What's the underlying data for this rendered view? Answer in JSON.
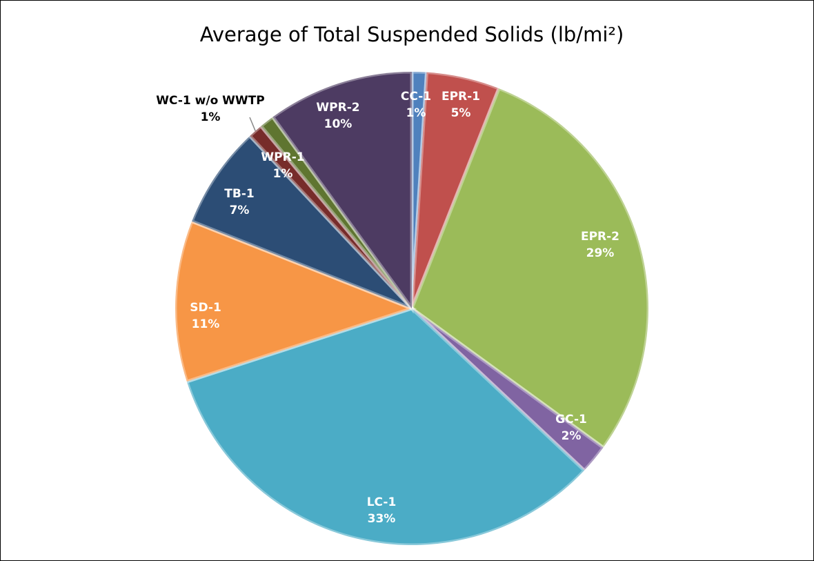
{
  "chart_data": {
    "type": "pie",
    "title": "Average of Total Suspended Solids (lb/mi²)",
    "categories": [
      "CC-1",
      "EPR-1",
      "EPR-2",
      "GC-1",
      "LC-1",
      "SD-1",
      "TB-1",
      "WC-1 w/o WWTP",
      "WPR-1",
      "WPR-2"
    ],
    "values": [
      1,
      5,
      29,
      2,
      33,
      11,
      7,
      1,
      1,
      10
    ],
    "value_labels": [
      "1%",
      "5%",
      "29%",
      "2%",
      "33%",
      "11%",
      "7%",
      "1%",
      "1%",
      "10%"
    ],
    "colors": [
      "#4f81bd",
      "#c0504d",
      "#9bbb59",
      "#8064a2",
      "#4bacc6",
      "#f79646",
      "#2c4d75",
      "#772c2a",
      "#5f7530",
      "#4d3b62"
    ]
  }
}
